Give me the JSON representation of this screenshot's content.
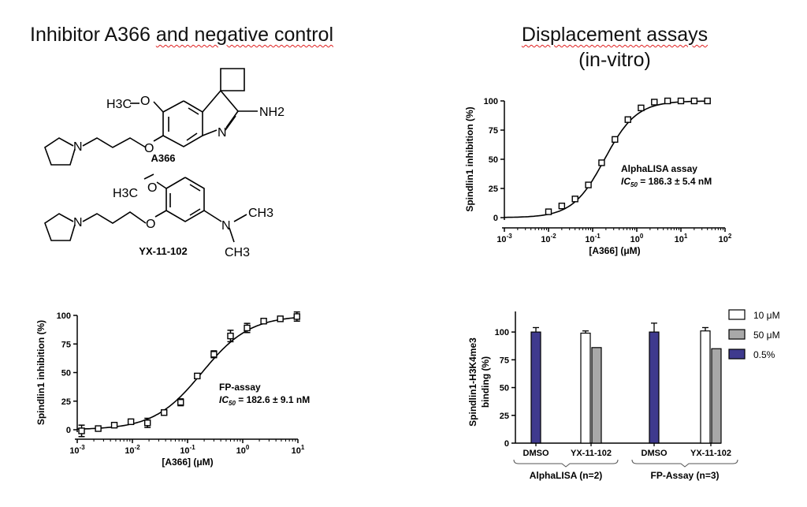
{
  "headings": {
    "left_prefix": "Inhibitor A366 ",
    "left_underlined": "and negative control",
    "right_line1": "Displacement assays",
    "right_line2": "(in-vitro)"
  },
  "structures": {
    "a366": {
      "name": "A366",
      "labels": {
        "methoxy": "H3C",
        "ether_o": "O",
        "nh2": "NH2",
        "ring_n": "N",
        "o_link": "O",
        "pyrrolidine_n": "N"
      }
    },
    "yx": {
      "name": "YX-11-102",
      "labels": {
        "methoxy": "H3C",
        "ether_o": "O",
        "o_link": "O",
        "pyrrolidine_n": "N",
        "amine_n": "N",
        "me1": "CH3",
        "me2": "CH3"
      }
    }
  },
  "chart_data": [
    {
      "type": "scatter",
      "panel": "FP-assay",
      "ylabel": "Spindlin1 inhibition (%)",
      "xlabel": "[A366] (μM)",
      "xscale": "log",
      "xlim": [
        0.001,
        10
      ],
      "ylim": [
        0,
        100
      ],
      "yticks": [
        "0",
        "25",
        "50",
        "75",
        "100"
      ],
      "xticks": [
        "10-3",
        "10-2",
        "10-1",
        "100",
        "101"
      ],
      "annotation": {
        "title": "FP-assay",
        "ic_label": "IC",
        "ic_sub": "50",
        "ic_value": " = 182.6 ± 9.1 nM"
      },
      "fit": {
        "ic50_uM": 0.1826,
        "hill": 1.0
      },
      "points": [
        {
          "x": 0.0012,
          "y": -1,
          "err": 5
        },
        {
          "x": 0.0024,
          "y": 1,
          "err": 1
        },
        {
          "x": 0.0047,
          "y": 4,
          "err": 1
        },
        {
          "x": 0.0094,
          "y": 7,
          "err": 2
        },
        {
          "x": 0.0188,
          "y": 6,
          "err": 4
        },
        {
          "x": 0.0375,
          "y": 15,
          "err": 2
        },
        {
          "x": 0.075,
          "y": 24,
          "err": 3
        },
        {
          "x": 0.15,
          "y": 47,
          "err": 2
        },
        {
          "x": 0.3,
          "y": 66,
          "err": 3
        },
        {
          "x": 0.6,
          "y": 82,
          "err": 5
        },
        {
          "x": 1.2,
          "y": 89,
          "err": 4
        },
        {
          "x": 2.4,
          "y": 95,
          "err": 2
        },
        {
          "x": 4.8,
          "y": 97,
          "err": 2
        },
        {
          "x": 9.6,
          "y": 99,
          "err": 4
        }
      ]
    },
    {
      "type": "scatter",
      "panel": "AlphaLISA assay",
      "ylabel": "Spindlin1 inhibition (%)",
      "xlabel": "[A366] (μM)",
      "xscale": "log",
      "xlim": [
        0.001,
        100
      ],
      "ylim": [
        0,
        100
      ],
      "yticks": [
        "0",
        "25",
        "50",
        "75",
        "100"
      ],
      "xticks": [
        "10-3",
        "10-2",
        "10-1",
        "100",
        "101",
        "102"
      ],
      "annotation": {
        "title": "AlphaLISA assay",
        "ic_label": "IC",
        "ic_sub": "50",
        "ic_value": " = 186.3 ± 5.4 nM"
      },
      "fit": {
        "ic50_uM": 0.1863,
        "hill": 1.2
      },
      "points": [
        {
          "x": 0.01,
          "y": 5
        },
        {
          "x": 0.02,
          "y": 10
        },
        {
          "x": 0.04,
          "y": 16
        },
        {
          "x": 0.08,
          "y": 28
        },
        {
          "x": 0.16,
          "y": 47
        },
        {
          "x": 0.32,
          "y": 67
        },
        {
          "x": 0.63,
          "y": 84
        },
        {
          "x": 1.25,
          "y": 94
        },
        {
          "x": 2.5,
          "y": 99
        },
        {
          "x": 5,
          "y": 100
        },
        {
          "x": 10,
          "y": 100
        },
        {
          "x": 20,
          "y": 100
        },
        {
          "x": 40,
          "y": 100
        }
      ]
    },
    {
      "type": "bar",
      "ylabel_line1": "Spindlin1-H3K4me3",
      "ylabel_line2": "binding (%)",
      "ylim": [
        0,
        100
      ],
      "yticks": [
        "0",
        "25",
        "50",
        "75",
        "100"
      ],
      "groups": [
        {
          "label": "AlphaLISA (n=2)",
          "categories": [
            "DMSO",
            "YX-11-102"
          ]
        },
        {
          "label": "FP-Assay (n=3)",
          "categories": [
            "DMSO",
            "YX-11-102"
          ]
        }
      ],
      "legend": [
        {
          "name": "10 μM",
          "color": "#ffffff"
        },
        {
          "name": "50 μM",
          "color": "#a8a8a8"
        },
        {
          "name": "0.5%",
          "color": "#3f3a8e"
        }
      ],
      "bars": [
        {
          "group": 0,
          "category": 0,
          "series": "0.5%",
          "value": 100,
          "err": 4
        },
        {
          "group": 0,
          "category": 1,
          "series": "10 μM",
          "value": 99,
          "err": 2
        },
        {
          "group": 0,
          "category": 1,
          "series": "50 μM",
          "value": 86,
          "err": 0
        },
        {
          "group": 1,
          "category": 0,
          "series": "0.5%",
          "value": 100,
          "err": 8
        },
        {
          "group": 1,
          "category": 1,
          "series": "10 μM",
          "value": 101,
          "err": 3
        },
        {
          "group": 1,
          "category": 1,
          "series": "50 μM",
          "value": 85,
          "err": 0
        }
      ]
    }
  ]
}
